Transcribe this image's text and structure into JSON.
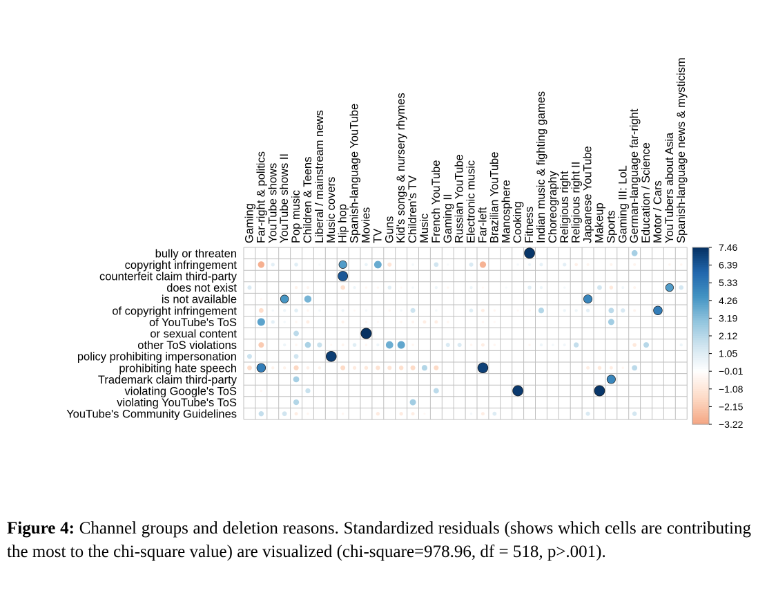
{
  "chart_data": {
    "type": "heatmap",
    "subtype": "corrplot-circles",
    "columns": [
      "Gaming",
      "Far-right & politics",
      "YouTube shows",
      "YouTube shows II",
      "Pop music",
      "Children & Teens",
      "Liberal / mainstream news",
      "Music covers",
      "Hip hop",
      "Spanish-language YouTube",
      "Movies",
      "TV",
      "Guns",
      "Kid's songs & nursery rhymes",
      "Children's TV",
      "Music",
      "French YouTube",
      "Gaming II",
      "Russian YouTube",
      "Electronic music",
      "Far-left",
      "Brazilian YouTube",
      "Manosphere",
      "Cooking",
      "Fitness",
      "Indian music & fighting games",
      "Choreography",
      "Religious right",
      "Religious right II",
      "Japanese YouTube",
      "Makeup",
      "Sports",
      "Gaming III: LoL",
      "German-language far-right",
      "Education / Science",
      "Motor / Cars",
      "YouTubers about Asia",
      "Spanish-language news & mysticism"
    ],
    "rows": [
      "bully or threaten",
      "copyright infringement",
      "counterfeit claim third-party",
      "does not exist",
      "is not available",
      "of copyright infringement",
      "of YouTube's ToS",
      "or sexual content",
      "other ToS violations",
      "policy prohibiting impersonation",
      "prohibiting hate speech",
      "Trademark claim third-party",
      "violating Google's ToS",
      "violating YouTube's ToS",
      "YouTube's Community Guidelines"
    ],
    "values": [
      [
        0,
        0,
        0,
        0,
        0,
        0,
        0,
        0,
        0,
        0,
        0,
        0,
        0,
        0,
        0,
        0,
        0,
        0,
        0,
        0,
        0,
        0,
        0,
        0,
        7.3,
        0,
        0,
        0,
        0,
        0,
        0,
        0,
        0,
        2.5,
        0,
        0,
        0,
        0
      ],
      [
        0,
        -2.9,
        0.9,
        0,
        1.0,
        0,
        0.3,
        0,
        4.2,
        0,
        0.7,
        3.8,
        -1.2,
        0,
        0.4,
        0,
        1.5,
        0.3,
        0,
        1.2,
        -2.8,
        0,
        0,
        0.4,
        0.6,
        0.8,
        0,
        0.9,
        -0.7,
        -0.5,
        0,
        -0.5,
        0,
        -0.5,
        0,
        0,
        -0.4,
        -0.4
      ],
      [
        0,
        0,
        0,
        0,
        0,
        0,
        0,
        0,
        6.4,
        0,
        0,
        0,
        0,
        0,
        0,
        0,
        0,
        0,
        0,
        0,
        0,
        0,
        0,
        0,
        0,
        0,
        0,
        0,
        0,
        0,
        0,
        0,
        0,
        0,
        0,
        0,
        0,
        0
      ],
      [
        1.2,
        0,
        0,
        0,
        -0.6,
        -0.5,
        0,
        0,
        -1.4,
        0.6,
        -0.4,
        -0.4,
        1.0,
        -0.3,
        0.4,
        0,
        0.6,
        -0.4,
        0,
        0.6,
        -0.3,
        0,
        0.3,
        0,
        1.0,
        0.6,
        0,
        0.4,
        0,
        0,
        1.5,
        -1.0,
        0.5,
        -0.5,
        0,
        0,
        4.2,
        1.4
      ],
      [
        0,
        -0.3,
        0,
        4.4,
        0,
        3.5,
        0,
        0,
        0,
        0,
        0,
        0,
        0,
        0,
        0,
        0,
        0,
        0,
        0,
        0,
        0,
        0,
        0,
        0,
        0,
        0,
        0,
        0,
        0,
        4.9,
        0,
        0,
        0,
        0,
        0,
        0,
        0,
        0
      ],
      [
        0,
        -1.5,
        0.4,
        0.6,
        1.0,
        -0.4,
        0.4,
        0,
        0.6,
        -0.3,
        0.4,
        0,
        -0.4,
        0.4,
        1.6,
        0,
        0.4,
        0,
        0,
        1.0,
        -0.8,
        -0.4,
        0,
        -0.3,
        -0.4,
        2.2,
        0,
        0.6,
        0.6,
        0.9,
        0,
        2.0,
        1.3,
        -0.5,
        0,
        5.2,
        0,
        0
      ],
      [
        0,
        4.0,
        0.9,
        0.4,
        -0.4,
        -0.8,
        0,
        0,
        -0.6,
        0,
        -0.4,
        -0.3,
        0,
        -0.4,
        -0.5,
        -0.8,
        -0.8,
        -0.4,
        0,
        0,
        -0.4,
        -0.3,
        0,
        0,
        0,
        0,
        0,
        0,
        0,
        0,
        0,
        2.6,
        0,
        0,
        0,
        0,
        0,
        0
      ],
      [
        0,
        0,
        0,
        0,
        2.0,
        0,
        0,
        0,
        0,
        0,
        7.5,
        0,
        0,
        0,
        0,
        0,
        0,
        0,
        0,
        0,
        0,
        0,
        0,
        0,
        0,
        0,
        0,
        0,
        0,
        0,
        0,
        0,
        0,
        0,
        0,
        0,
        0,
        0
      ],
      [
        0,
        -2.1,
        0,
        0.6,
        -0.4,
        2.4,
        1.7,
        -0.3,
        -0.5,
        1.0,
        -0.4,
        0.6,
        3.7,
        3.9,
        -0.4,
        0,
        0,
        1.2,
        1.2,
        -0.4,
        -0.8,
        -0.4,
        0,
        0,
        -0.4,
        0.6,
        0.4,
        0.5,
        1.8,
        0,
        0,
        0,
        0,
        -1.0,
        2.1,
        0,
        0,
        0.6
      ],
      [
        1.6,
        0,
        0,
        0,
        1.5,
        0,
        0,
        7.1,
        0,
        0,
        0,
        0,
        0,
        0,
        0,
        0,
        0,
        0,
        0,
        0,
        0,
        0,
        0,
        0,
        0,
        0,
        0,
        0,
        0,
        0,
        0,
        0,
        0,
        0,
        0,
        0,
        0,
        0
      ],
      [
        -1.5,
        5.2,
        -0.6,
        -0.6,
        -1.7,
        -0.7,
        -0.6,
        0,
        -1.6,
        -0.9,
        -1.0,
        -1.3,
        -1.2,
        -1.4,
        -1.6,
        2.2,
        -1.6,
        0,
        0,
        0,
        7.0,
        0,
        0,
        0,
        0,
        0,
        0,
        0,
        0,
        -0.8,
        -1.0,
        -0.8,
        -0.4,
        2.0,
        0,
        0,
        0,
        0
      ],
      [
        0,
        0,
        0,
        0,
        2.5,
        0,
        0,
        0,
        0,
        0,
        0,
        0,
        0,
        0,
        0,
        0,
        0,
        0,
        0,
        0,
        0,
        0,
        0,
        0,
        0,
        0,
        0,
        0,
        0,
        0,
        0,
        4.9,
        0,
        0,
        0,
        0,
        0,
        0
      ],
      [
        0,
        -0.4,
        0,
        0,
        0,
        1.7,
        0,
        0,
        0,
        0,
        0,
        0,
        0,
        0,
        0,
        0,
        2.0,
        0,
        0,
        0,
        0,
        0,
        0,
        7.2,
        0,
        0,
        0,
        0,
        0,
        0,
        7.3,
        0,
        0,
        0,
        0,
        0,
        0,
        0
      ],
      [
        0,
        0,
        0,
        0,
        2.2,
        0,
        0,
        0,
        0,
        0,
        0,
        0,
        0,
        0,
        2.6,
        0,
        0,
        0,
        0,
        0,
        0,
        0,
        0,
        0,
        0,
        0,
        0,
        0,
        0,
        0,
        0,
        0,
        0,
        0,
        0,
        0,
        0,
        0
      ],
      [
        0,
        1.8,
        0,
        1.5,
        -0.8,
        -0.4,
        0,
        0,
        -0.4,
        0,
        0,
        -0.9,
        0,
        -0.9,
        -0.8,
        -0.3,
        0,
        0,
        0,
        0.4,
        -0.8,
        1.1,
        0,
        0,
        0,
        0,
        0,
        0,
        0,
        1.2,
        0,
        0,
        0,
        1.4,
        0,
        0,
        0,
        0
      ]
    ],
    "colorbar_ticks": [
      "7.46",
      "6.39",
      "5.33",
      "4.26",
      "3.19",
      "2.12",
      "1.05",
      "−0.01",
      "−1.08",
      "−2.15",
      "−3.22"
    ],
    "colorbar_range": [
      -3.22,
      7.46
    ],
    "colors": {
      "negative": "#F4A582",
      "zero": "#FFFFFF",
      "positive": "#053061",
      "grid": "#BFBFBF"
    }
  },
  "caption": {
    "label": "Figure 4:",
    "text": " Channel groups and deletion reasons. Standardized residuals (shows which cells are contributing the most to the chi-square value) are visualized (chi-square=978.96, df = 518, p>.001)."
  }
}
